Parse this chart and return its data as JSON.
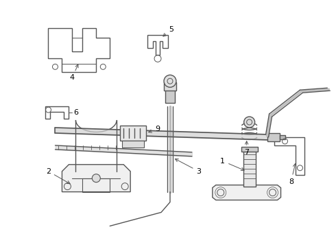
{
  "background_color": "#ffffff",
  "line_color": "#555555",
  "label_color": "#000000",
  "label_fontsize": 8,
  "fig_width": 4.9,
  "fig_height": 3.6,
  "dpi": 100
}
